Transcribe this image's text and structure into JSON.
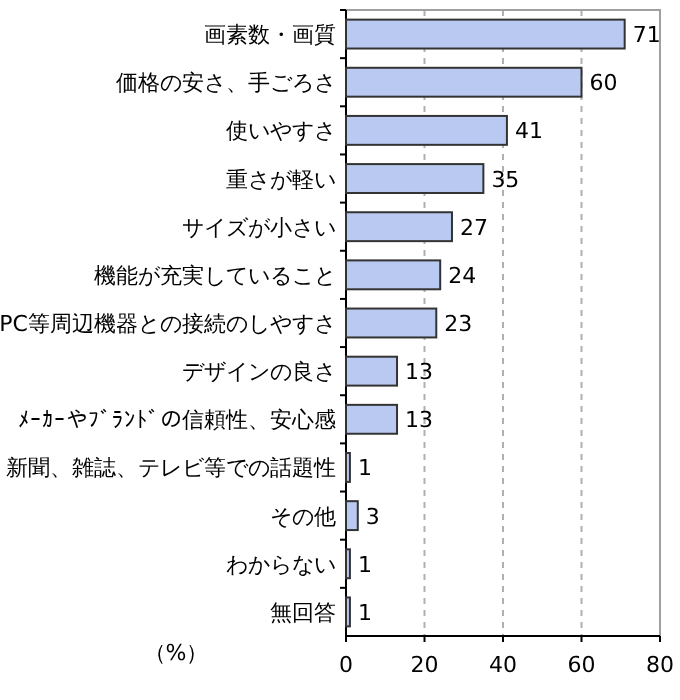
{
  "chart_data": {
    "type": "bar",
    "orientation": "horizontal",
    "xlabel": "（%）",
    "categories": [
      "画素数・画質",
      "価格の安さ、手ごろさ",
      "使いやすさ",
      "重さが軽い",
      "サイズが小さい",
      "機能が充実していること",
      "PC等周辺機器との接続のしやすさ",
      "デザインの良さ",
      "ﾒｰｶｰやﾌﾞﾗﾝﾄﾞの信頼性、安心感",
      "新聞、雑誌、テレビ等での話題性",
      "その他",
      "わからない",
      "無回答"
    ],
    "values": [
      71,
      60,
      41,
      35,
      27,
      24,
      23,
      13,
      13,
      1,
      3,
      1,
      1
    ],
    "color": "#b9c9f2",
    "xlim": [
      0,
      80
    ],
    "xticks": [
      0,
      20,
      40,
      60,
      80
    ],
    "grid": "x",
    "data_labels": true
  }
}
